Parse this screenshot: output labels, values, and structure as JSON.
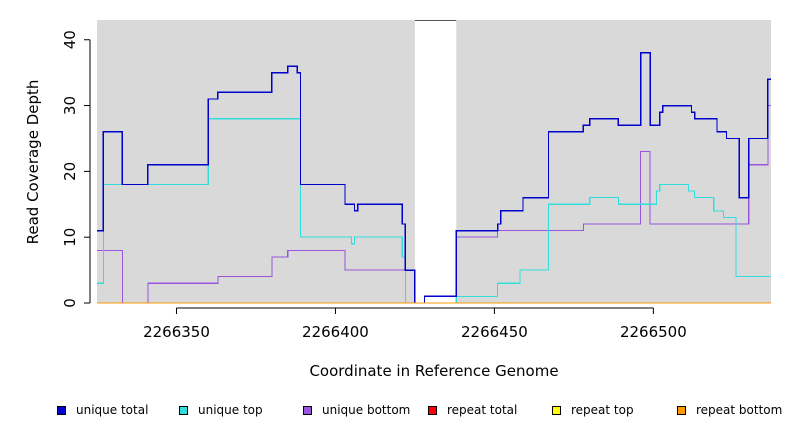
{
  "chart_data": {
    "type": "line",
    "step": true,
    "xlabel": "Coordinate in Reference Genome",
    "ylabel": "Read Coverage Depth",
    "xlim": [
      2266325,
      2266537
    ],
    "ylim": [
      0,
      43
    ],
    "x_ticks": [
      2266350,
      2266400,
      2266450,
      2266500
    ],
    "y_ticks": [
      0,
      10,
      20,
      30,
      40
    ],
    "background": "#d9d9d9",
    "shaded_regions": [
      [
        2266325,
        2266425
      ],
      [
        2266438,
        2266537
      ]
    ],
    "series": [
      {
        "name": "unique total",
        "color": "#0000cc",
        "points": [
          [
            2266325,
            11
          ],
          [
            2266327,
            26
          ],
          [
            2266333,
            18
          ],
          [
            2266341,
            21
          ],
          [
            2266360,
            31
          ],
          [
            2266363,
            32
          ],
          [
            2266380,
            35
          ],
          [
            2266385,
            36
          ],
          [
            2266388,
            35
          ],
          [
            2266389,
            18
          ],
          [
            2266403,
            15
          ],
          [
            2266406,
            14
          ],
          [
            2266407,
            15
          ],
          [
            2266421,
            12
          ],
          [
            2266422,
            5
          ],
          [
            2266425,
            0
          ],
          [
            2266428,
            1
          ],
          [
            2266438,
            11
          ],
          [
            2266451,
            12
          ],
          [
            2266452,
            14
          ],
          [
            2266459,
            16
          ],
          [
            2266467,
            26
          ],
          [
            2266478,
            27
          ],
          [
            2266480,
            28
          ],
          [
            2266489,
            27
          ],
          [
            2266496,
            38
          ],
          [
            2266499,
            27
          ],
          [
            2266502,
            29
          ],
          [
            2266503,
            30
          ],
          [
            2266512,
            29
          ],
          [
            2266513,
            28
          ],
          [
            2266520,
            26
          ],
          [
            2266523,
            25
          ],
          [
            2266527,
            16
          ],
          [
            2266530,
            25
          ],
          [
            2266536,
            34
          ],
          [
            2266537,
            34
          ]
        ]
      },
      {
        "name": "unique top",
        "color": "#33dddd",
        "points": [
          [
            2266325,
            3
          ],
          [
            2266327,
            18
          ],
          [
            2266360,
            28
          ],
          [
            2266389,
            10
          ],
          [
            2266405,
            9
          ],
          [
            2266406,
            10
          ],
          [
            2266421,
            7
          ],
          [
            2266422,
            0
          ],
          [
            2266438,
            1
          ],
          [
            2266451,
            3
          ],
          [
            2266458,
            5
          ],
          [
            2266467,
            15
          ],
          [
            2266480,
            16
          ],
          [
            2266489,
            15
          ],
          [
            2266501,
            17
          ],
          [
            2266502,
            18
          ],
          [
            2266511,
            17
          ],
          [
            2266513,
            16
          ],
          [
            2266519,
            14
          ],
          [
            2266522,
            13
          ],
          [
            2266526,
            4
          ],
          [
            2266537,
            4
          ]
        ]
      },
      {
        "name": "unique bottom",
        "color": "#9955dd",
        "points": [
          [
            2266325,
            8
          ],
          [
            2266333,
            0
          ],
          [
            2266341,
            3
          ],
          [
            2266363,
            4
          ],
          [
            2266380,
            7
          ],
          [
            2266385,
            8
          ],
          [
            2266403,
            5
          ],
          [
            2266422,
            0
          ],
          [
            2266438,
            10
          ],
          [
            2266451,
            11
          ],
          [
            2266478,
            12
          ],
          [
            2266496,
            23
          ],
          [
            2266499,
            12
          ],
          [
            2266530,
            21
          ],
          [
            2266536,
            30
          ],
          [
            2266537,
            30
          ]
        ]
      },
      {
        "name": "repeat total",
        "color": "#ff0000",
        "points": [
          [
            2266325,
            0
          ],
          [
            2266537,
            0
          ]
        ]
      },
      {
        "name": "repeat top",
        "color": "#ffff00",
        "points": [
          [
            2266325,
            0
          ],
          [
            2266537,
            0
          ]
        ]
      },
      {
        "name": "repeat bottom",
        "color": "#ff9900",
        "points": [
          [
            2266325,
            0
          ],
          [
            2266537,
            0
          ]
        ]
      }
    ]
  },
  "legend": [
    {
      "label": "unique total",
      "color": "#0000cc"
    },
    {
      "label": "unique top",
      "color": "#33dddd"
    },
    {
      "label": "unique bottom",
      "color": "#9955dd"
    },
    {
      "label": "repeat total",
      "color": "#ff0000"
    },
    {
      "label": "repeat top",
      "color": "#ffff00"
    },
    {
      "label": "repeat bottom",
      "color": "#ff9900"
    }
  ]
}
